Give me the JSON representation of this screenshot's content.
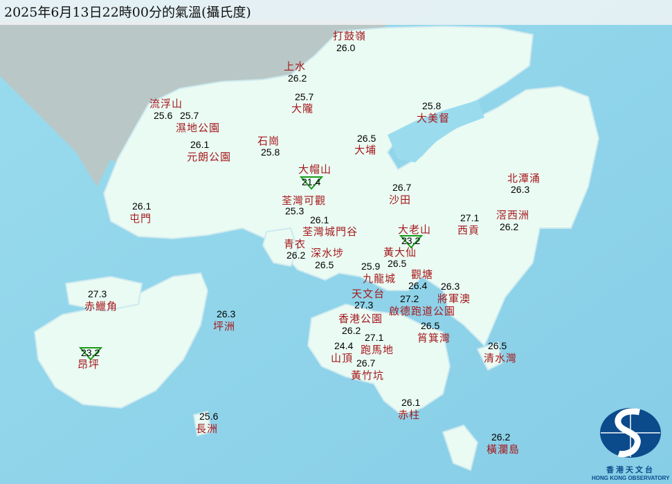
{
  "title": "2025年6月13日22時00分的氣溫(攝氏度)",
  "colors": {
    "sea": "#8fd4ea",
    "land": "#eafbf3",
    "station_name": "#a5181c",
    "temperature": "#000000",
    "min_marker": "#1a9a1a",
    "logo": "#0b4a8b"
  },
  "stations": [
    {
      "name": "打鼓嶺",
      "temp": "26.0"
    },
    {
      "name": "上水",
      "temp": "26.2"
    },
    {
      "name": "大隴",
      "temp": "25.7"
    },
    {
      "name": "流浮山",
      "temp": "25.6"
    },
    {
      "name": "濕地公園",
      "temp": "25.7"
    },
    {
      "name": "石崗",
      "temp": "25.8"
    },
    {
      "name": "元朗公園",
      "temp": "26.1"
    },
    {
      "name": "大埔",
      "temp": "26.5"
    },
    {
      "name": "大美督",
      "temp": "25.8"
    },
    {
      "name": "大帽山",
      "temp": "21.4",
      "marker": "down-triangle"
    },
    {
      "name": "荃灣可觀",
      "temp": "25.3"
    },
    {
      "name": "荃灣城門谷",
      "temp": "26.1"
    },
    {
      "name": "沙田",
      "temp": "26.7"
    },
    {
      "name": "北潭涌",
      "temp": "26.3"
    },
    {
      "name": "屯門",
      "temp": "26.1"
    },
    {
      "name": "西貢",
      "temp": "27.1"
    },
    {
      "name": "大老山",
      "temp": "23.2",
      "marker": "down-triangle"
    },
    {
      "name": "滘西洲",
      "temp": "26.2"
    },
    {
      "name": "青衣",
      "temp": "26.2"
    },
    {
      "name": "深水埗",
      "temp": "26.5"
    },
    {
      "name": "黃大仙",
      "temp": "26.5"
    },
    {
      "name": "九龍城",
      "temp": "25.9"
    },
    {
      "name": "觀塘",
      "temp": "26.4"
    },
    {
      "name": "將軍澳",
      "temp": "26.3"
    },
    {
      "name": "天文台",
      "temp": "27.3"
    },
    {
      "name": "啟德跑道公園",
      "temp": "27.2"
    },
    {
      "name": "香港公園",
      "temp": "26.2"
    },
    {
      "name": "赤鱲角",
      "temp": "27.3"
    },
    {
      "name": "坪洲",
      "temp": "26.3"
    },
    {
      "name": "筲箕灣",
      "temp": "26.5"
    },
    {
      "name": "跑馬地",
      "temp": "27.1"
    },
    {
      "name": "山頂",
      "temp": "24.4"
    },
    {
      "name": "黃竹坑",
      "temp": "26.7"
    },
    {
      "name": "清水灣",
      "temp": "26.5"
    },
    {
      "name": "昂坪",
      "temp": "23.2",
      "marker": "down-triangle"
    },
    {
      "name": "赤柱",
      "temp": "26.1"
    },
    {
      "name": "長洲",
      "temp": "25.6"
    },
    {
      "name": "橫瀾島",
      "temp": "26.2"
    }
  ],
  "logo": {
    "name_zh": "香港天文台",
    "name_en": "HONG KONG OBSERVATORY"
  }
}
